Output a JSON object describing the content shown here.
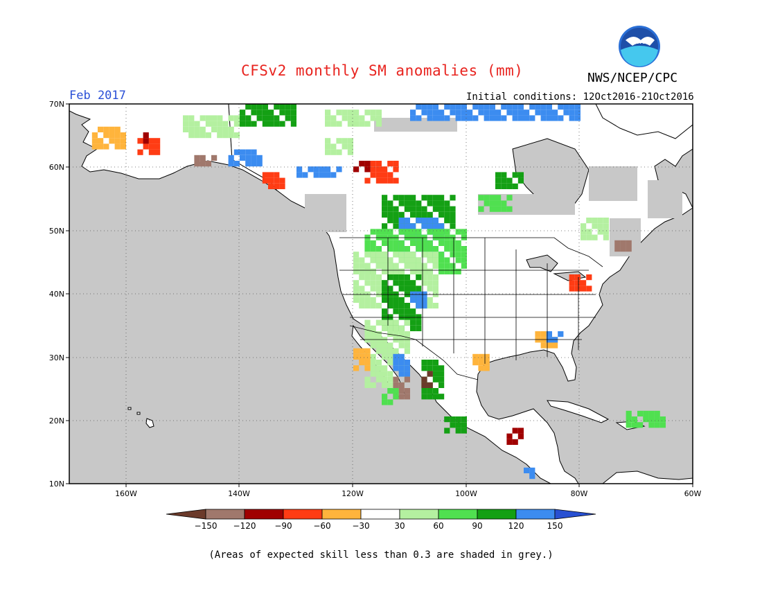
{
  "title": "CFSv2 monthly SM anomalies (mm)",
  "agency": "NWS/NCEP/CPC",
  "logo_text": "NOAA",
  "valid_month": "Feb 2017",
  "initial_conditions_label": "Initial conditions:",
  "initial_conditions_range": "12Oct2016-21Oct2016",
  "footnote": "(Areas of expected skill less than 0.3 are shaded in grey.)",
  "map": {
    "lat_labels": [
      "70N",
      "60N",
      "50N",
      "40N",
      "30N",
      "20N",
      "10N"
    ],
    "lon_labels": [
      "160W",
      "140W",
      "120W",
      "100W",
      "80W",
      "60W"
    ],
    "lat_range": [
      10,
      70
    ],
    "lon_range": [
      -170,
      -60
    ],
    "ocean_color": "#c8c8c8",
    "land_color": "#ffffff"
  },
  "legend": {
    "ticks": [
      "−150",
      "−120",
      "−90",
      "−60",
      "−30",
      "30",
      "60",
      "90",
      "120",
      "150"
    ],
    "colors": {
      "lt_-150": "#6b3a2a",
      "-150_-120": "#a0786c",
      "-120_-90": "#a00000",
      "-90_-60": "#ff3c14",
      "-60_-30": "#ffb43c",
      "-30_30": "#ffffff",
      "30_60": "#b4f0a0",
      "60_90": "#50e050",
      "90_120": "#14a014",
      "120_150": "#3c8cf0",
      "gt_150": "#2850d2"
    }
  }
}
